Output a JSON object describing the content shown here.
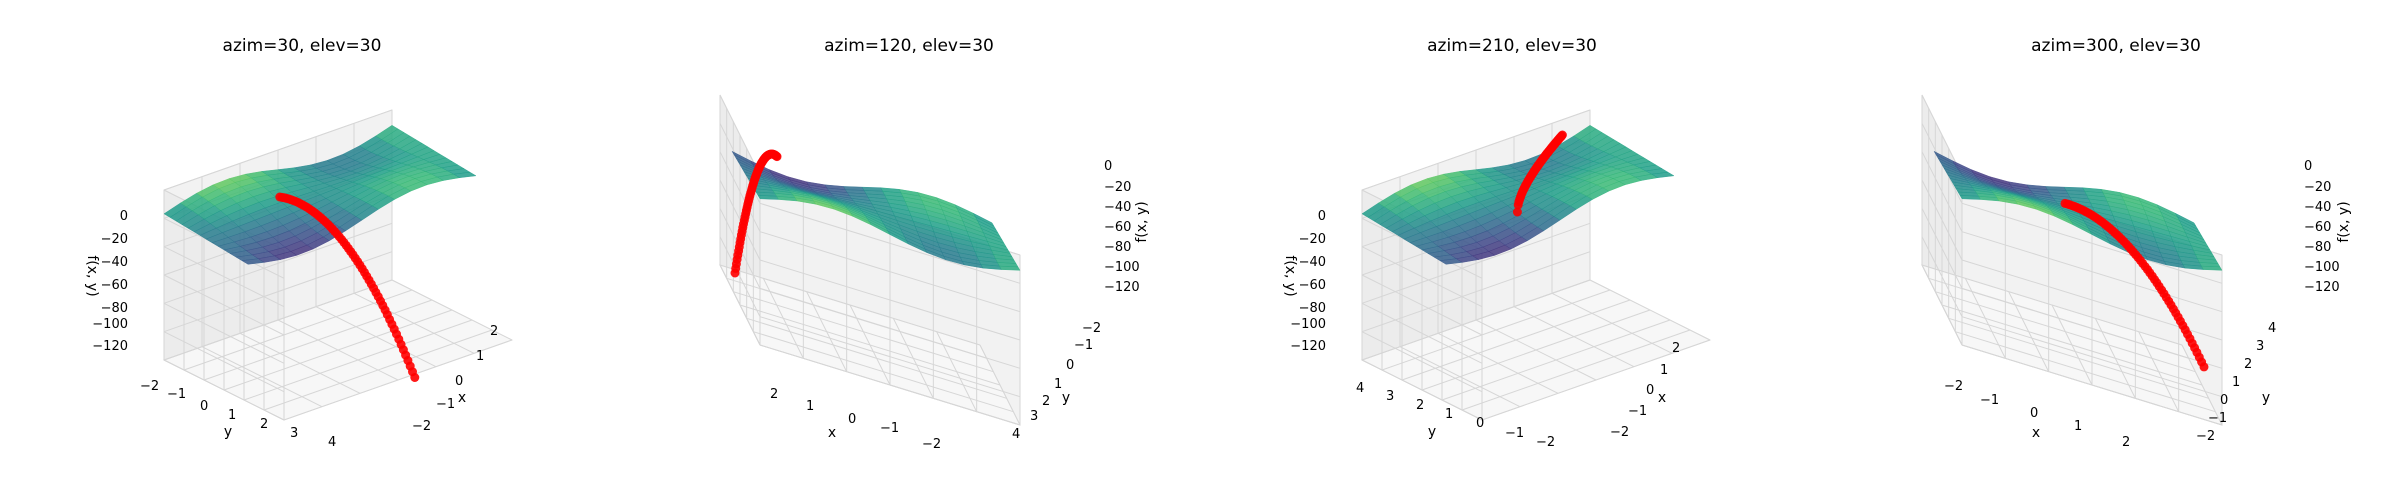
{
  "figure": {
    "background": "#ffffff",
    "pane_color": "#f2f2f2",
    "grid_color": "#d6d6d6",
    "surface_colormap": "viridis",
    "trajectory_color": "#ff0000"
  },
  "chart_data": [
    {
      "type": "surface3d",
      "title": "azim=30, elev=30",
      "azim": 30,
      "elev": 30,
      "xlabel": "x",
      "ylabel": "y",
      "zlabel": "f(x, y)",
      "xticks": [
        "2",
        "1",
        "0",
        "−1",
        "−2"
      ],
      "yticks": [
        "−2",
        "−1",
        "0",
        "1",
        "2",
        "3",
        "4"
      ],
      "zticks": [
        "0",
        "−20",
        "−40",
        "−60",
        "−80",
        "−100",
        "−120"
      ],
      "xlim": [
        -2,
        2
      ],
      "ylim": [
        -2,
        4.5
      ],
      "zlim": [
        -130,
        10
      ],
      "trajectory_points": 60
    },
    {
      "type": "surface3d",
      "title": "azim=120, elev=30",
      "azim": 120,
      "elev": 30,
      "xlabel": "x",
      "ylabel": "y",
      "zlabel": "f(x, y)",
      "xticks": [
        "2",
        "1",
        "0",
        "−1",
        "−2"
      ],
      "yticks": [
        "−2",
        "−1",
        "0",
        "1",
        "2",
        "3",
        "4"
      ],
      "zticks": [
        "0",
        "−20",
        "−40",
        "−60",
        "−80",
        "−100",
        "−120"
      ],
      "xlim": [
        -2,
        2
      ],
      "ylim": [
        -2,
        4.5
      ],
      "zlim": [
        -130,
        10
      ],
      "trajectory_points": 60
    },
    {
      "type": "surface3d",
      "title": "azim=210, elev=30",
      "azim": 210,
      "elev": 30,
      "xlabel": "x",
      "ylabel": "y",
      "zlabel": "f(x, y)",
      "xticks": [
        "2",
        "1",
        "0",
        "−1",
        "−2"
      ],
      "yticks": [
        "4",
        "3",
        "2",
        "1",
        "0",
        "−1",
        "−2"
      ],
      "zticks": [
        "0",
        "−20",
        "−40",
        "−60",
        "−80",
        "−100",
        "−120"
      ],
      "xlim": [
        -2,
        2
      ],
      "ylim": [
        -2,
        4.5
      ],
      "zlim": [
        -130,
        10
      ],
      "trajectory_points": 60
    },
    {
      "type": "surface3d",
      "title": "azim=300, elev=30",
      "azim": 300,
      "elev": 30,
      "xlabel": "x",
      "ylabel": "y",
      "zlabel": "f(x, y)",
      "xticks": [
        "−2",
        "−1",
        "0",
        "1",
        "2"
      ],
      "yticks": [
        "−2",
        "−1",
        "0",
        "1",
        "2",
        "3",
        "4"
      ],
      "zticks": [
        "0",
        "−20",
        "−40",
        "−60",
        "−80",
        "−100",
        "−120"
      ],
      "xlim": [
        -2,
        2
      ],
      "ylim": [
        -2,
        4.5
      ],
      "zlim": [
        -130,
        10
      ],
      "trajectory_points": 60
    }
  ]
}
